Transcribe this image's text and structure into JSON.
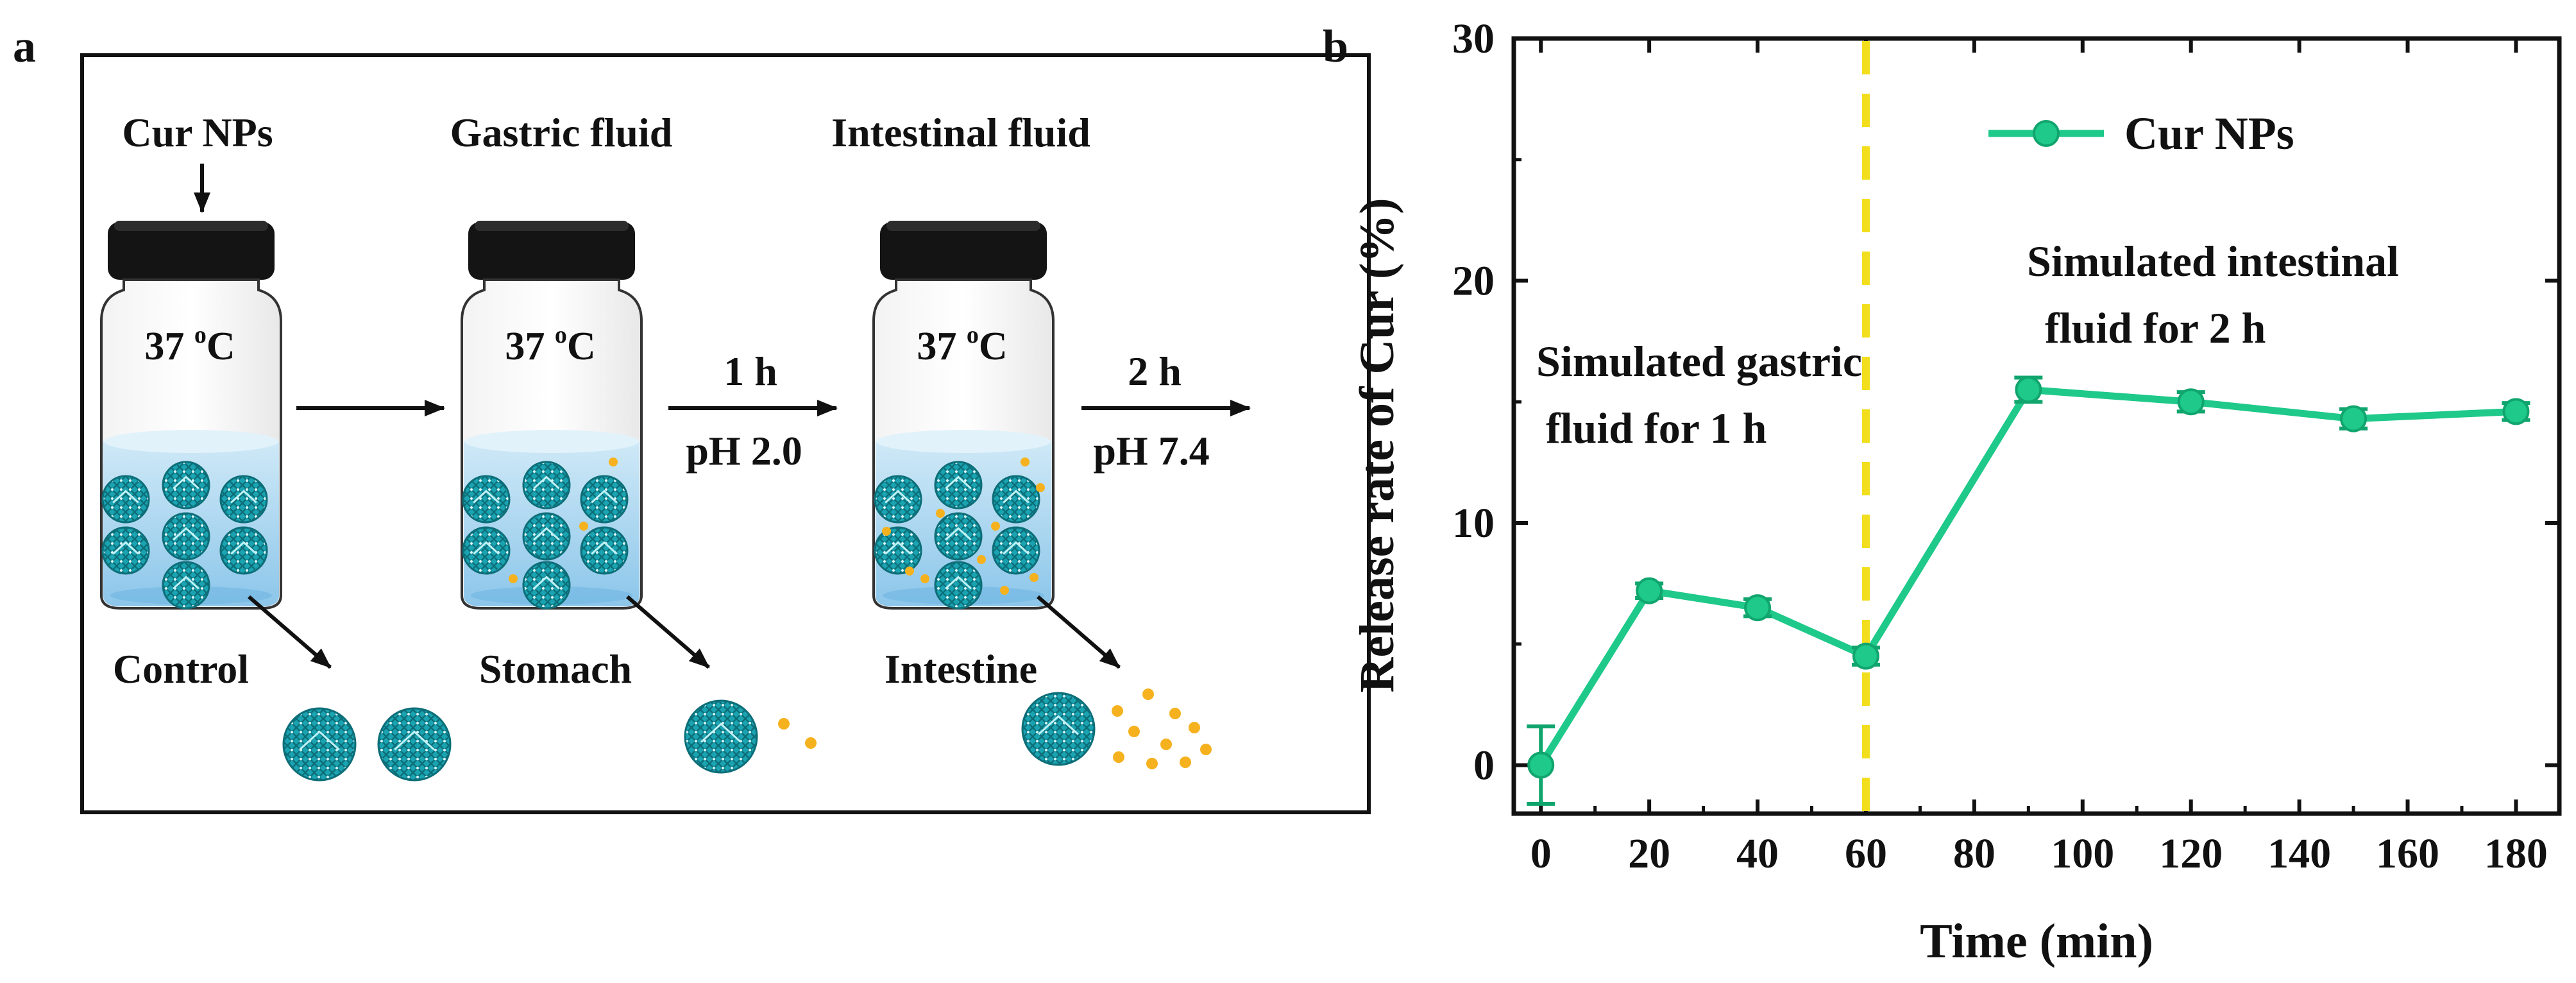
{
  "panel_a": {
    "letter": "a",
    "stage_labels": [
      "Cur NPs",
      "Gastric fluid",
      "Intestinal fluid"
    ],
    "temp_number": "37",
    "temp_sup": "o",
    "temp_unit": "C",
    "step1": {
      "time": "1 h",
      "ph": "pH 2.0"
    },
    "step2": {
      "time": "2 h",
      "ph": "pH 7.4"
    },
    "bottom_labels": [
      "Control",
      "Stomach",
      "Intestine"
    ]
  },
  "colors": {
    "series": "#1ec98a",
    "marker_dark": "#11a56e",
    "divider": "#f2de1c",
    "liquid": "#a9d6ef",
    "liquid_dark": "#6fb6e3",
    "nanoparticle": "#1aa3b1",
    "nanoparticle_dark": "#0d6e78",
    "drug": "#f5b21e",
    "cap": "#141414"
  },
  "chart_data": {
    "type": "line",
    "panel_letter": "b",
    "series": [
      {
        "name": "Cur NPs",
        "x": [
          0,
          20,
          40,
          60,
          90,
          120,
          150,
          180
        ],
        "y": [
          0,
          7.2,
          6.5,
          4.5,
          15.5,
          15.0,
          14.3,
          14.6
        ],
        "error": [
          1.6,
          0.3,
          0.35,
          0.35,
          0.5,
          0.4,
          0.4,
          0.35
        ]
      }
    ],
    "xlabel": "Time (min)",
    "ylabel": "Release rate of Cur (%)",
    "xlim": [
      -5,
      188
    ],
    "ylim": [
      -2,
      30
    ],
    "xticks": [
      0,
      20,
      40,
      60,
      80,
      100,
      120,
      140,
      160,
      180
    ],
    "yticks": [
      0,
      10,
      20,
      30
    ],
    "divider_x": 60,
    "legend": "top-right",
    "annotations": {
      "gastric": [
        "Simulated gastric",
        "fluid for 1 h"
      ],
      "intestinal": [
        "Simulated intestinal",
        "fluid for 2 h"
      ]
    }
  }
}
